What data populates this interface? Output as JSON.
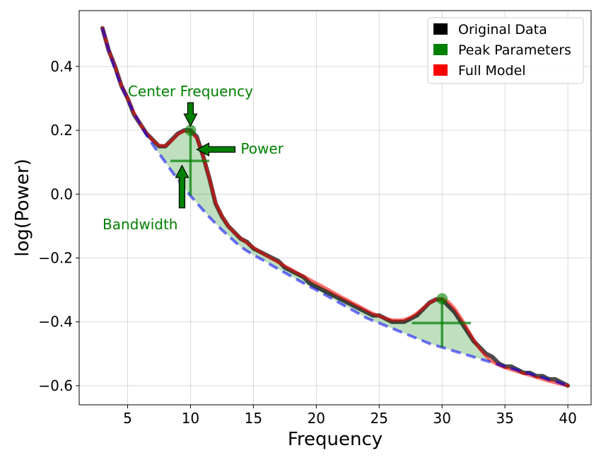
{
  "chart_data": {
    "type": "line",
    "xlabel": "Frequency",
    "ylabel": "log(Power)",
    "xlim": [
      1.15,
      41.85
    ],
    "ylim": [
      -0.66,
      0.575
    ],
    "xticks": [
      5,
      10,
      15,
      20,
      25,
      30,
      35,
      40
    ],
    "yticks": [
      0.4,
      0.2,
      0.0,
      -0.2,
      -0.4,
      -0.6
    ],
    "xtick_labels": [
      "5",
      "10",
      "15",
      "20",
      "25",
      "30",
      "35",
      "40"
    ],
    "ytick_labels": [
      "0.4",
      "0.2",
      "0.0",
      "−0.2",
      "−0.4",
      "−0.6"
    ],
    "grid": true,
    "legend_position": "top-right",
    "legend": [
      {
        "label": "Original Data",
        "color": "#000000"
      },
      {
        "label": "Peak Parameters",
        "color": "#008000"
      },
      {
        "label": "Full Model",
        "color": "#ff0000"
      }
    ],
    "x": [
      3,
      3.5,
      4,
      4.5,
      5,
      5.5,
      6,
      6.5,
      7,
      7.5,
      8,
      8.5,
      9,
      9.5,
      10,
      10.5,
      11,
      11.5,
      12,
      12.5,
      13,
      13.5,
      14,
      14.5,
      15,
      15.5,
      16,
      16.5,
      17,
      17.5,
      18,
      18.5,
      19,
      19.5,
      20,
      20.5,
      21,
      21.5,
      22,
      22.5,
      23,
      23.5,
      24,
      24.5,
      25,
      25.5,
      26,
      26.5,
      27,
      27.5,
      28,
      28.5,
      29,
      29.5,
      30,
      30.5,
      31,
      31.5,
      32,
      32.5,
      33,
      33.5,
      34,
      34.5,
      35,
      35.5,
      36,
      36.5,
      37,
      37.5,
      38,
      38.5,
      39,
      39.5,
      40
    ],
    "series": [
      {
        "name": "Original Data",
        "color": "#000000",
        "values": [
          0.52,
          0.45,
          0.4,
          0.34,
          0.3,
          0.25,
          0.22,
          0.19,
          0.17,
          0.15,
          0.15,
          0.17,
          0.19,
          0.2,
          0.2,
          0.18,
          0.12,
          0.05,
          -0.03,
          -0.07,
          -0.1,
          -0.12,
          -0.14,
          -0.15,
          -0.17,
          -0.18,
          -0.19,
          -0.2,
          -0.21,
          -0.23,
          -0.24,
          -0.25,
          -0.26,
          -0.28,
          -0.29,
          -0.3,
          -0.31,
          -0.32,
          -0.33,
          -0.34,
          -0.35,
          -0.36,
          -0.37,
          -0.38,
          -0.38,
          -0.39,
          -0.4,
          -0.4,
          -0.4,
          -0.39,
          -0.38,
          -0.36,
          -0.34,
          -0.33,
          -0.33,
          -0.35,
          -0.37,
          -0.4,
          -0.43,
          -0.46,
          -0.48,
          -0.5,
          -0.51,
          -0.53,
          -0.54,
          -0.54,
          -0.55,
          -0.56,
          -0.56,
          -0.57,
          -0.57,
          -0.58,
          -0.58,
          -0.59,
          -0.6
        ]
      },
      {
        "name": "Full Model",
        "color": "#ff0000",
        "values": [
          0.52,
          0.45,
          0.4,
          0.34,
          0.3,
          0.255,
          0.22,
          0.19,
          0.168,
          0.152,
          0.151,
          0.167,
          0.188,
          0.198,
          0.197,
          0.175,
          0.121,
          0.049,
          -0.027,
          -0.069,
          -0.1,
          -0.121,
          -0.139,
          -0.153,
          -0.167,
          -0.18,
          -0.192,
          -0.203,
          -0.214,
          -0.225,
          -0.236,
          -0.247,
          -0.257,
          -0.268,
          -0.279,
          -0.289,
          -0.3,
          -0.311,
          -0.322,
          -0.332,
          -0.343,
          -0.353,
          -0.364,
          -0.374,
          -0.382,
          -0.389,
          -0.394,
          -0.395,
          -0.393,
          -0.386,
          -0.373,
          -0.357,
          -0.341,
          -0.33,
          -0.328,
          -0.337,
          -0.358,
          -0.388,
          -0.421,
          -0.455,
          -0.485,
          -0.508,
          -0.525,
          -0.536,
          -0.544,
          -0.55,
          -0.556,
          -0.562,
          -0.568,
          -0.574,
          -0.58,
          -0.586,
          -0.591,
          -0.596,
          -0.6
        ]
      },
      {
        "name": "Aperiodic Fit",
        "color": "#0000ff",
        "values": [
          0.52,
          0.45,
          0.39,
          0.34,
          0.295,
          0.255,
          0.22,
          0.185,
          0.155,
          0.127,
          0.1,
          0.072,
          0.046,
          0.02,
          -0.005,
          -0.028,
          -0.05,
          -0.072,
          -0.092,
          -0.112,
          -0.13,
          -0.148,
          -0.165,
          -0.178,
          -0.19,
          -0.201,
          -0.212,
          -0.224,
          -0.235,
          -0.246,
          -0.257,
          -0.268,
          -0.279,
          -0.29,
          -0.3,
          -0.311,
          -0.322,
          -0.333,
          -0.344,
          -0.355,
          -0.366,
          -0.377,
          -0.388,
          -0.396,
          -0.404,
          -0.412,
          -0.42,
          -0.428,
          -0.436,
          -0.444,
          -0.452,
          -0.46,
          -0.468,
          -0.474,
          -0.48,
          -0.486,
          -0.492,
          -0.498,
          -0.504,
          -0.51,
          -0.516,
          -0.522,
          -0.528,
          -0.534,
          -0.54,
          -0.546,
          -0.551,
          -0.557,
          -0.563,
          -0.569,
          -0.575,
          -0.581,
          -0.587,
          -0.593,
          -0.6
        ]
      }
    ],
    "peaks": [
      {
        "center_frequency": 10,
        "power": 0.2,
        "bandwidth_x": [
          8.4,
          11.5
        ],
        "bandwidth_y": 0.104,
        "aperiodic_at_center": -0.005
      },
      {
        "center_frequency": 30,
        "power": -0.328,
        "bandwidth_x": [
          27.6,
          32.3
        ],
        "bandwidth_y": -0.404,
        "aperiodic_at_center": -0.48
      }
    ],
    "annotations": [
      {
        "text": "Center Frequency",
        "color": "#008000"
      },
      {
        "text": "Power",
        "color": "#008000"
      },
      {
        "text": "Bandwidth",
        "color": "#008000"
      }
    ]
  }
}
